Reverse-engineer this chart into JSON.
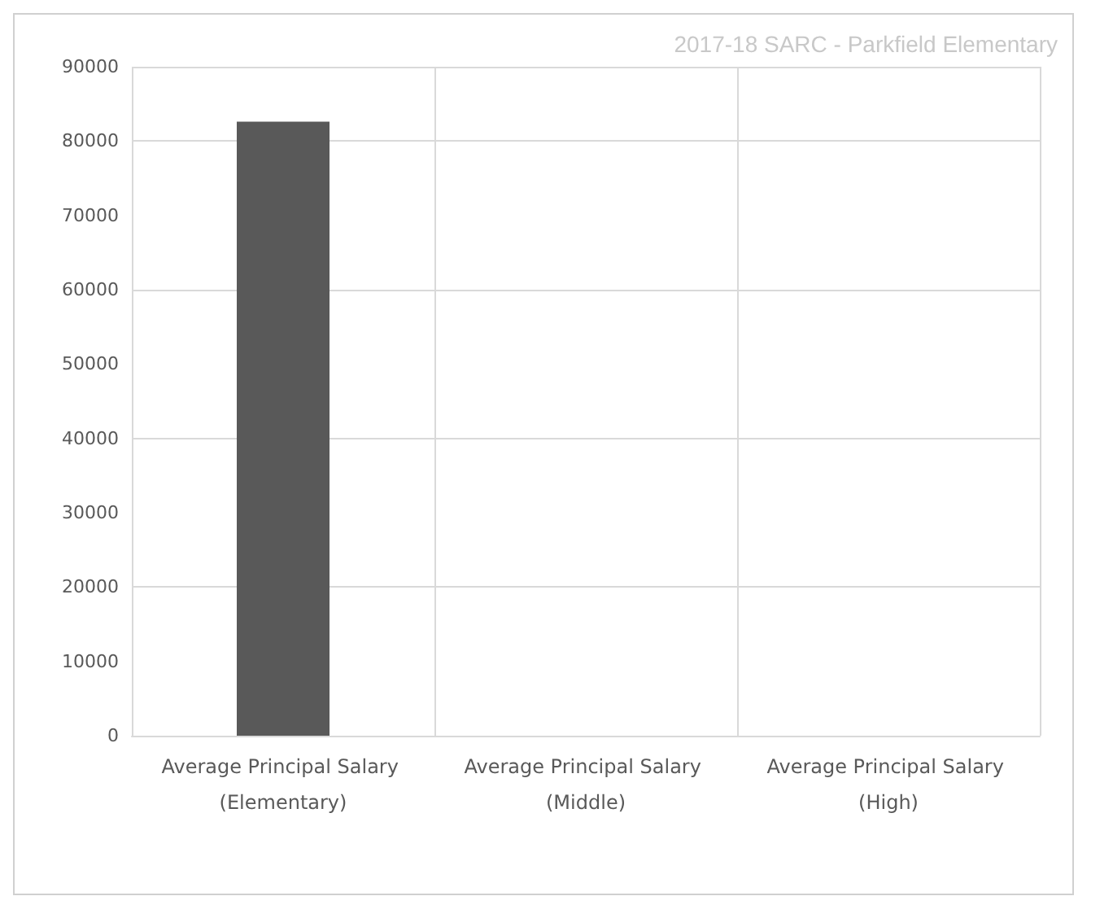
{
  "chart_data": {
    "type": "bar",
    "title": "2017-18 SARC - Parkfield Elementary",
    "categories": [
      "Average Principal Salary (Elementary)",
      "Average Principal Salary (Middle)",
      "Average Principal Salary (High)"
    ],
    "values": [
      82600,
      null,
      null
    ],
    "color": "#595959",
    "ylim": [
      0,
      90000
    ],
    "yticks": [
      0,
      10000,
      20000,
      30000,
      40000,
      50000,
      60000,
      70000,
      80000,
      90000
    ],
    "grid": true
  }
}
